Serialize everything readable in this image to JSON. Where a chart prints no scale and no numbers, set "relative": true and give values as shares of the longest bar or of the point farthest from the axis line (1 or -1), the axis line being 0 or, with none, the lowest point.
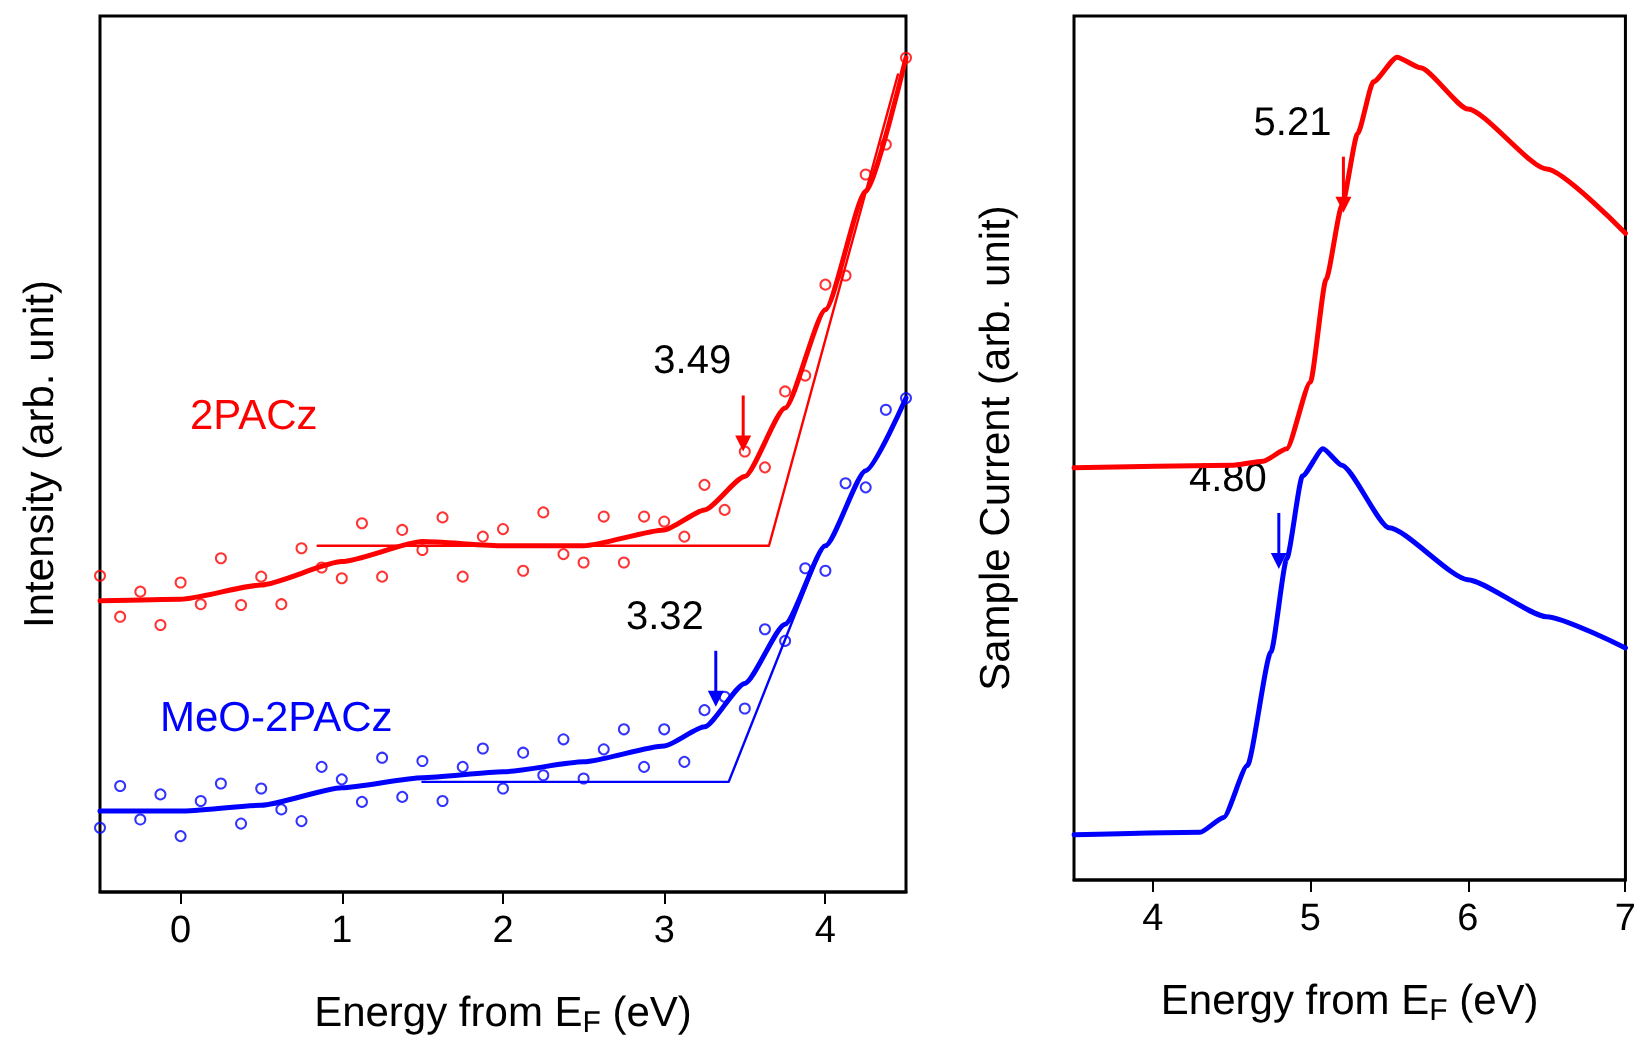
{
  "chart_data": [
    {
      "type": "scatter",
      "xlabel": "Energy from E$_{F}$ (eV)",
      "ylabel": "Intensity (arb. unit)",
      "relative": true,
      "xlim": [
        -0.5,
        4.5
      ],
      "xticks": [
        0,
        1,
        2,
        3,
        4
      ],
      "legend": false,
      "grid": false,
      "x": [
        -0.5,
        -0.375,
        -0.25,
        -0.125,
        0,
        0.125,
        0.25,
        0.375,
        0.5,
        0.625,
        0.75,
        0.875,
        1,
        1.125,
        1.25,
        1.375,
        1.5,
        1.625,
        1.75,
        1.875,
        2,
        2.125,
        2.25,
        2.375,
        2.5,
        2.625,
        2.75,
        2.875,
        3,
        3.125,
        3.25,
        3.375,
        3.5,
        3.625,
        3.75,
        3.875,
        4,
        4.125,
        4.25,
        4.375,
        4.5
      ],
      "series": [
        {
          "name": "2PACz",
          "marker": "circle",
          "color": "#ff0000",
          "values": [
            0.379,
            0.33,
            0.36,
            0.32,
            0.371,
            0.345,
            0.4,
            0.344,
            0.378,
            0.345,
            0.412,
            0.389,
            0.376,
            0.442,
            0.378,
            0.434,
            0.41,
            0.449,
            0.378,
            0.426,
            0.435,
            0.385,
            0.455,
            0.405,
            0.395,
            0.45,
            0.395,
            0.45,
            0.444,
            0.426,
            0.488,
            0.458,
            0.528,
            0.509,
            0.6,
            0.619,
            0.728,
            0.739,
            0.86,
            0.896,
            1
          ]
        },
        {
          "name": "MeO-2PACz",
          "marker": "circle",
          "color": "#0000ff",
          "values": [
            0.077,
            0.127,
            0.087,
            0.117,
            0.067,
            0.109,
            0.13,
            0.082,
            0.124,
            0.099,
            0.085,
            0.15,
            0.135,
            0.108,
            0.161,
            0.114,
            0.157,
            0.109,
            0.15,
            0.172,
            0.124,
            0.167,
            0.14,
            0.183,
            0.136,
            0.171,
            0.195,
            0.15,
            0.195,
            0.156,
            0.218,
            0.234,
            0.22,
            0.315,
            0.301,
            0.388,
            0.385,
            0.49,
            0.485,
            0.578,
            0.592
          ]
        },
        {
          "type": "line",
          "marker": "none",
          "color": "#ff0000",
          "x": [
            -0.5,
            0,
            0.5,
            1,
            1.5,
            2,
            2.5,
            3,
            3.25,
            3.5,
            3.75,
            4,
            4.25,
            4.5
          ],
          "values": [
            0.349,
            0.351,
            0.368,
            0.396,
            0.42,
            0.415,
            0.415,
            0.434,
            0.458,
            0.498,
            0.58,
            0.698,
            0.84,
            1
          ]
        },
        {
          "type": "line",
          "marker": "none",
          "color": "#0000ff",
          "x": [
            -0.5,
            0,
            0.5,
            1,
            1.5,
            2,
            2.5,
            3,
            3.25,
            3.5,
            3.75,
            4,
            4.25,
            4.5
          ],
          "values": [
            0.097,
            0.097,
            0.104,
            0.125,
            0.137,
            0.144,
            0.156,
            0.175,
            0.198,
            0.25,
            0.321,
            0.415,
            0.505,
            0.592
          ]
        },
        {
          "type": "line",
          "marker": "none",
          "color": "#ff0000",
          "x": [
            0.85,
            3.65,
            4.45
          ],
          "values": [
            0.415,
            0.415,
            0.98
          ]
        },
        {
          "type": "line",
          "marker": "none",
          "color": "#0000ff",
          "x": [
            1.5,
            3.4,
            3.95
          ],
          "values": [
            0.132,
            0.132,
            0.4
          ]
        }
      ],
      "annotations": [
        {
          "text": "3.49",
          "x": 3.49,
          "y": 0.528
        },
        {
          "text": "3.32",
          "x": 3.32,
          "y": 0.222
        }
      ]
    },
    {
      "type": "line",
      "xlabel": "Energy from E$_{F}$ (eV)",
      "ylabel": "Sample Current (arb. unit)",
      "relative": true,
      "xlim": [
        3.5,
        7
      ],
      "xticks": [
        4,
        5,
        6,
        7
      ],
      "legend": false,
      "grid": false,
      "marker": "none",
      "series": [
        {
          "color": "#ff0000",
          "x": [
            3.5,
            4.5,
            4.7,
            4.85,
            5.0,
            5.1,
            5.2,
            5.3,
            5.4,
            5.55,
            5.7,
            6.0,
            6.5,
            7.0
          ],
          "values": [
            0.501,
            0.504,
            0.509,
            0.524,
            0.605,
            0.73,
            0.819,
            0.907,
            0.97,
            1,
            0.987,
            0.937,
            0.864,
            0.786
          ]
        },
        {
          "color": "#0000ff",
          "x": [
            3.5,
            4.3,
            4.45,
            4.6,
            4.75,
            4.85,
            4.95,
            5.08,
            5.2,
            5.5,
            6.0,
            6.5,
            7.0
          ],
          "values": [
            0.055,
            0.058,
            0.076,
            0.139,
            0.277,
            0.39,
            0.491,
            0.524,
            0.504,
            0.428,
            0.365,
            0.32,
            0.282
          ]
        }
      ],
      "annotations": [
        {
          "text": "5.21",
          "x": 5.21,
          "y": 0.811
        },
        {
          "text": "4.80",
          "x": 4.8,
          "y": 0.378
        }
      ]
    }
  ]
}
